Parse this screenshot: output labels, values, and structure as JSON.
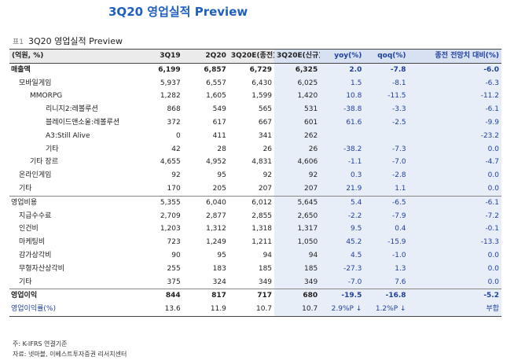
{
  "page_title": "3Q20 영업실적 Preview",
  "caption": {
    "prefix": "표1",
    "text": "3Q20 영업실적 Preview"
  },
  "headers": [
    "(억원, %)",
    "3Q19",
    "2Q20",
    "3Q20E(종전)",
    "3Q20E(신규)",
    "yoy(%)",
    "qoq(%)",
    "종전 전망치 대비(%)"
  ],
  "rows": [
    {
      "label": "매출액",
      "indent": 0,
      "bold": true,
      "cells": [
        "6,199",
        "6,857",
        "6,729",
        "6,325",
        "2.0",
        "-7.8",
        "-6.0"
      ]
    },
    {
      "label": "모바일게임",
      "indent": 1,
      "cells": [
        "5,937",
        "6,557",
        "6,430",
        "6,025",
        "1.5",
        "-8.1",
        "-6.3"
      ]
    },
    {
      "label": "MMORPG",
      "indent": 2,
      "cells": [
        "1,282",
        "1,605",
        "1,599",
        "1,420",
        "10.8",
        "-11.5",
        "-11.2"
      ]
    },
    {
      "label": "리니지2:레볼루션",
      "indent": 3,
      "cells": [
        "868",
        "549",
        "565",
        "531",
        "-38.8",
        "-3.3",
        "-6.1"
      ]
    },
    {
      "label": "블레이드앤소울:레볼루션",
      "indent": 3,
      "cells": [
        "372",
        "617",
        "667",
        "601",
        "61.6",
        "-2.5",
        "-9.9"
      ]
    },
    {
      "label": "A3:Still Alive",
      "indent": 3,
      "cells": [
        "0",
        "411",
        "341",
        "262",
        "",
        "",
        "-23.2"
      ]
    },
    {
      "label": "기타",
      "indent": 3,
      "cells": [
        "42",
        "28",
        "26",
        "26",
        "-38.2",
        "-7.3",
        "0.0"
      ]
    },
    {
      "label": "기타 장르",
      "indent": 2,
      "cells": [
        "4,655",
        "4,952",
        "4,831",
        "4,606",
        "-1.1",
        "-7.0",
        "-4.7"
      ]
    },
    {
      "label": "온라인게임",
      "indent": 1,
      "cells": [
        "92",
        "95",
        "92",
        "92",
        "0.3",
        "-2.8",
        "0.0"
      ]
    },
    {
      "label": "기타",
      "indent": 1,
      "cells": [
        "170",
        "205",
        "207",
        "207",
        "21.9",
        "1.1",
        "0.0"
      ]
    },
    {
      "label": "영업비용",
      "indent": 0,
      "sep": true,
      "cells": [
        "5,355",
        "6,040",
        "6,012",
        "5,645",
        "5.4",
        "-6.5",
        "-6.1"
      ]
    },
    {
      "label": "지급수수료",
      "indent": 1,
      "cells": [
        "2,709",
        "2,877",
        "2,855",
        "2,650",
        "-2.2",
        "-7.9",
        "-7.2"
      ]
    },
    {
      "label": "인건비",
      "indent": 1,
      "cells": [
        "1,203",
        "1,312",
        "1,318",
        "1,317",
        "9.5",
        "0.4",
        "-0.1"
      ]
    },
    {
      "label": "마케팅비",
      "indent": 1,
      "cells": [
        "723",
        "1,249",
        "1,211",
        "1,050",
        "45.2",
        "-15.9",
        "-13.3"
      ]
    },
    {
      "label": "감가상각비",
      "indent": 1,
      "cells": [
        "90",
        "95",
        "94",
        "94",
        "4.5",
        "-1.0",
        "0.0"
      ]
    },
    {
      "label": "무형자산상각비",
      "indent": 1,
      "cells": [
        "255",
        "183",
        "185",
        "185",
        "-27.3",
        "1.3",
        "0.0"
      ]
    },
    {
      "label": "기타",
      "indent": 1,
      "cells": [
        "375",
        "324",
        "349",
        "349",
        "-7.0",
        "7.6",
        "0.0"
      ]
    },
    {
      "label": "영업이익",
      "indent": 0,
      "bold": true,
      "sep": true,
      "cells": [
        "844",
        "817",
        "717",
        "680",
        "-19.5",
        "-16.8",
        "-5.2"
      ]
    },
    {
      "label": "영업이익률(%)",
      "indent": 0,
      "last": true,
      "blue_label": true,
      "cells": [
        "13.6",
        "11.9",
        "10.7",
        "10.7",
        "2.9%P ↓",
        "1.2%P ↓",
        "부합"
      ]
    }
  ],
  "notes": [
    "주: K-IFRS 연결기준",
    "자료: 넷마블, 이베스트투자증권 리서치센터"
  ]
}
